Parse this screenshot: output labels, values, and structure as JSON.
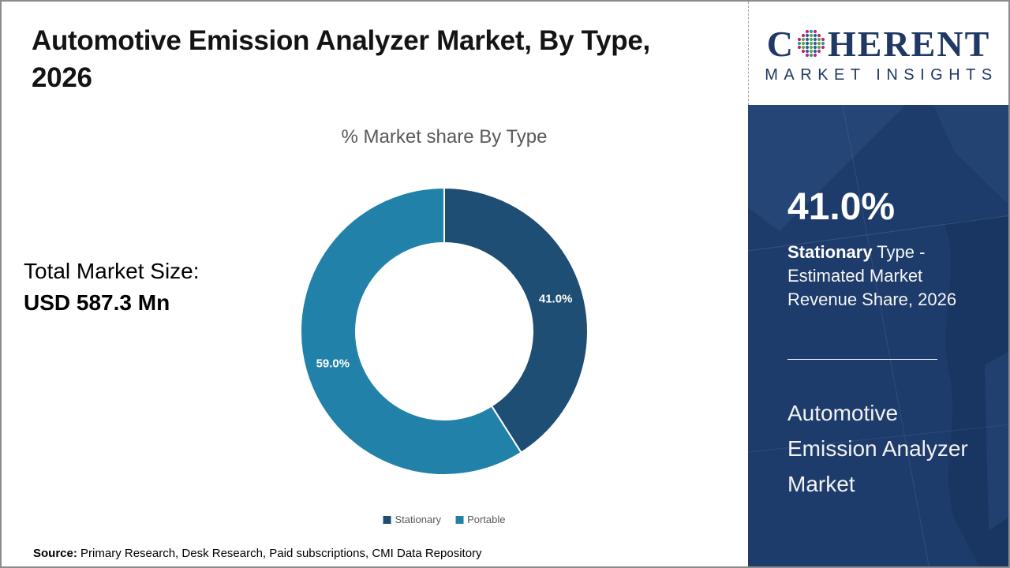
{
  "header": {
    "title_line1": "Automotive Emission Analyzer Market, By Type,",
    "title_line2": "2026"
  },
  "totals": {
    "label": "Total Market Size:",
    "value": "USD 587.3 Mn"
  },
  "source": {
    "label": "Source:",
    "text": " Primary Research, Desk Research, Paid subscriptions, CMI Data Repository"
  },
  "logo": {
    "name_prefix": "C",
    "name_suffix": "HERENT",
    "tagline": "MARKET INSIGHTS",
    "brand_color": "#1f3864",
    "globe_colors": [
      "#2a9d8f",
      "#c0267e",
      "#62a83f",
      "#2b5ea7"
    ]
  },
  "sidebar": {
    "stat_value": "41.0%",
    "stat_label_bold": "Stationary",
    "stat_label_rest": " Type - Estimated Market Revenue Share, 2026",
    "footer_title": "Automotive Emission Analyzer Market",
    "bg_color": "#1e3c6b"
  },
  "chart_data": {
    "type": "pie",
    "donut": true,
    "title": "% Market share By Type",
    "categories": [
      "Stationary",
      "Portable"
    ],
    "values": [
      41.0,
      59.0
    ],
    "labels": [
      "41.0%",
      "59.0%"
    ],
    "colors": [
      "#1f4e74",
      "#2181a8"
    ],
    "label_color": "#ffffff",
    "legend_position": "bottom",
    "start_angle": 0
  }
}
